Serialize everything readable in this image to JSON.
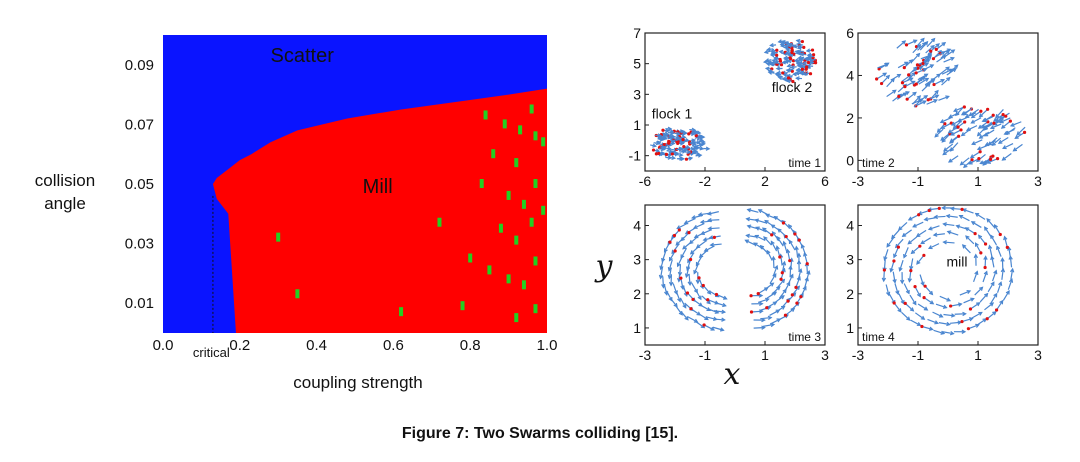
{
  "caption": "Figure 7: Two Swarms colliding [15].",
  "colors": {
    "scatter": "#0a14ff",
    "mill": "#ff0000",
    "green": "#22d022",
    "arrow": "#4a86d0",
    "dot": "#e01010",
    "text": "#111111"
  },
  "chart_data": [
    {
      "type": "heatmap",
      "title": "",
      "xlabel": "coupling strength",
      "ylabel": "collision\nangle",
      "xlim": [
        0.0,
        1.0
      ],
      "ylim": [
        0.0,
        0.1
      ],
      "xticks": [
        "0.0",
        "0.2",
        "0.4",
        "0.6",
        "0.8",
        "1.0"
      ],
      "yticks": [
        "0.01",
        "0.03",
        "0.05",
        "0.07",
        "0.09"
      ],
      "xtick_values": [
        0.0,
        0.2,
        0.4,
        0.6,
        0.8,
        1.0
      ],
      "ytick_values": [
        0.01,
        0.03,
        0.05,
        0.07,
        0.09
      ],
      "critical_label": "critical",
      "critical_x": 0.13,
      "regions": [
        {
          "name": "Scatter",
          "label_at": [
            0.28,
            0.093
          ]
        },
        {
          "name": "Mill",
          "label_at": [
            0.52,
            0.049
          ]
        }
      ],
      "boundary": [
        [
          0.0,
          0.19
        ],
        [
          0.01,
          0.185
        ],
        [
          0.02,
          0.18
        ],
        [
          0.03,
          0.175
        ],
        [
          0.04,
          0.17
        ],
        [
          0.045,
          0.14
        ],
        [
          0.05,
          0.13
        ],
        [
          0.052,
          0.14
        ],
        [
          0.055,
          0.17
        ],
        [
          0.058,
          0.2
        ],
        [
          0.06,
          0.23
        ],
        [
          0.064,
          0.28
        ],
        [
          0.068,
          0.35
        ],
        [
          0.072,
          0.48
        ],
        [
          0.075,
          0.62
        ],
        [
          0.078,
          0.79
        ],
        [
          0.08,
          0.9
        ],
        [
          0.082,
          1.0
        ]
      ],
      "green_cells": [
        [
          0.84,
          0.073
        ],
        [
          0.89,
          0.07
        ],
        [
          0.93,
          0.068
        ],
        [
          0.97,
          0.066
        ],
        [
          0.96,
          0.075
        ],
        [
          0.86,
          0.06
        ],
        [
          0.92,
          0.057
        ],
        [
          0.99,
          0.064
        ],
        [
          0.9,
          0.046
        ],
        [
          0.94,
          0.043
        ],
        [
          0.97,
          0.05
        ],
        [
          0.88,
          0.035
        ],
        [
          0.92,
          0.031
        ],
        [
          0.96,
          0.037
        ],
        [
          0.99,
          0.041
        ],
        [
          0.8,
          0.025
        ],
        [
          0.85,
          0.021
        ],
        [
          0.9,
          0.018
        ],
        [
          0.94,
          0.016
        ],
        [
          0.97,
          0.024
        ],
        [
          0.35,
          0.013
        ],
        [
          0.62,
          0.007
        ],
        [
          0.78,
          0.009
        ],
        [
          0.92,
          0.005
        ],
        [
          0.97,
          0.008
        ],
        [
          0.3,
          0.032
        ],
        [
          0.72,
          0.037
        ],
        [
          0.83,
          0.05
        ]
      ]
    },
    {
      "type": "scatter",
      "panel": "time 1",
      "xlim": [
        -6,
        6
      ],
      "ylim": [
        -2,
        7
      ],
      "xticks": [
        "-6",
        "-2",
        "2",
        "6"
      ],
      "xtick_values": [
        -6,
        -2,
        2,
        6
      ],
      "yticks": [
        "-1",
        "1",
        "3",
        "5",
        "7"
      ],
      "ytick_values": [
        -1,
        1,
        3,
        5,
        7
      ],
      "flocks": [
        {
          "label": "flock 1",
          "center": [
            -3.8,
            -0.2
          ],
          "radius": [
            1.9,
            1.1
          ],
          "heading_deg": 0
        },
        {
          "label": "flock 2",
          "center": [
            3.8,
            5.2
          ],
          "radius": [
            1.6,
            1.4
          ],
          "heading_deg": 180
        }
      ]
    },
    {
      "type": "scatter",
      "panel": "time 2",
      "xlim": [
        -3,
        3
      ],
      "ylim": [
        -0.5,
        6
      ],
      "xticks": [
        "-3",
        "-1",
        "1",
        "3"
      ],
      "xtick_values": [
        -3,
        -1,
        1,
        3
      ],
      "yticks": [
        "0",
        "2",
        "4",
        "6"
      ],
      "ytick_values": [
        0,
        2,
        4,
        6
      ],
      "flocks": [
        {
          "center": [
            -1.1,
            4.0
          ],
          "radius": [
            1.3,
            1.5
          ],
          "heading_deg": 35
        },
        {
          "center": [
            1.2,
            1.3
          ],
          "radius": [
            1.4,
            1.4
          ],
          "heading_deg": 215
        }
      ]
    },
    {
      "type": "scatter",
      "panel": "time 3",
      "xlim": [
        -3,
        3
      ],
      "ylim": [
        0.5,
        4.6
      ],
      "xticks": [
        "-3",
        "-1",
        "1",
        "3"
      ],
      "xtick_values": [
        -3,
        -1,
        1,
        3
      ],
      "yticks": [
        "1",
        "2",
        "3",
        "4"
      ],
      "ytick_values": [
        1,
        2,
        3,
        4
      ],
      "arcs": [
        {
          "center": [
            -0.3,
            2.7
          ],
          "radius": [
            2.1,
            1.7
          ],
          "from_deg": 95,
          "to_deg": 265
        },
        {
          "center": [
            0.4,
            2.7
          ],
          "radius": [
            2.0,
            1.7
          ],
          "from_deg": -85,
          "to_deg": 85
        }
      ]
    },
    {
      "type": "scatter",
      "panel": "time 4",
      "xlim": [
        -3,
        3
      ],
      "ylim": [
        0.5,
        4.6
      ],
      "xticks": [
        "-3",
        "-1",
        "1",
        "3"
      ],
      "xtick_values": [
        -3,
        -1,
        1,
        3
      ],
      "yticks": [
        "1",
        "2",
        "3",
        "4"
      ],
      "ytick_values": [
        1,
        2,
        3,
        4
      ],
      "label": "mill",
      "arcs": [
        {
          "center": [
            0.0,
            2.7
          ],
          "radius": [
            2.1,
            1.8
          ],
          "from_deg": 0,
          "to_deg": 360
        }
      ]
    }
  ],
  "shared_axes": {
    "xlabel": "x",
    "ylabel": "y"
  }
}
